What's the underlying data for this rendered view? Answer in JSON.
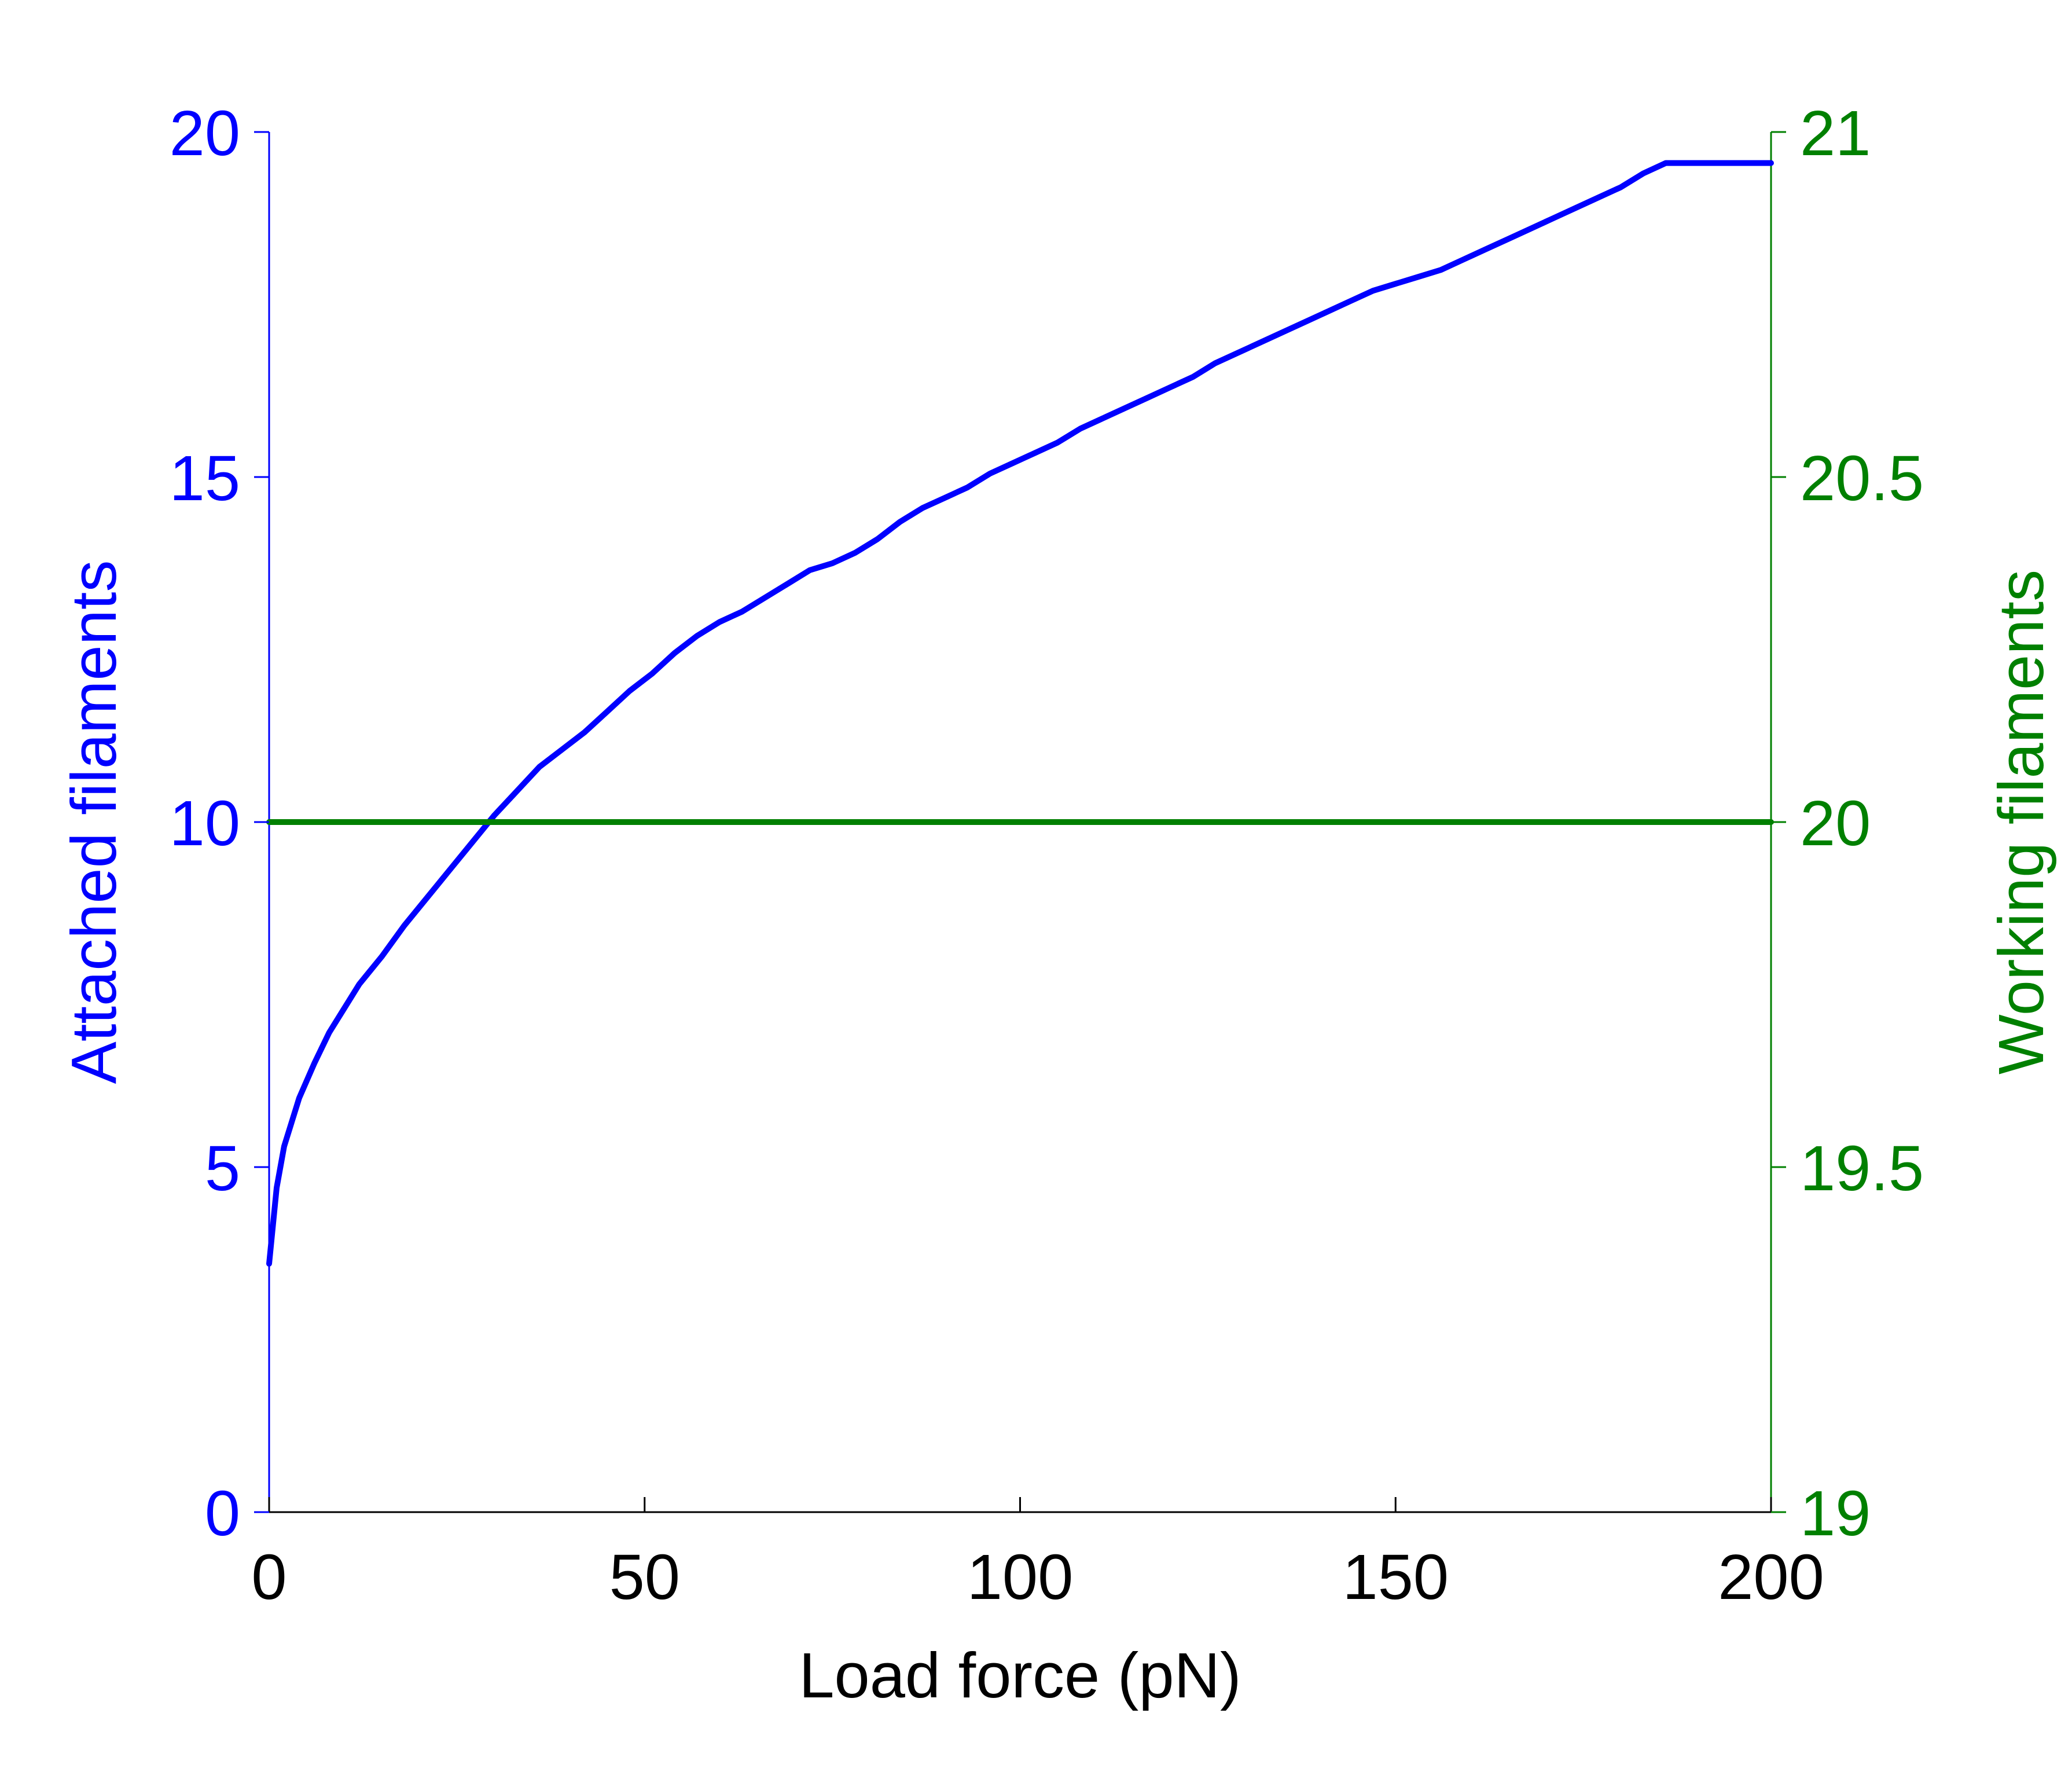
{
  "chart_data": {
    "type": "line",
    "xlabel": "Load force (pN)",
    "ylabel_left": "Attached filaments",
    "ylabel_right": "Working filaments",
    "xlim": [
      0,
      200
    ],
    "ylim_left": [
      0,
      20
    ],
    "ylim_right": [
      19,
      21
    ],
    "xticks": [
      "0",
      "50",
      "100",
      "150",
      "200"
    ],
    "yticks_left": [
      "0",
      "5",
      "10",
      "15",
      "20"
    ],
    "yticks_right": [
      "19",
      "19.5",
      "20",
      "20.5",
      "21"
    ],
    "grid": false,
    "colors": {
      "left_axis": "#0000ff",
      "right_axis": "#008000",
      "x_axis": "#000000"
    },
    "series": [
      {
        "axis": "left",
        "color": "#0000ff",
        "x": [
          0,
          1,
          2,
          4,
          6,
          8,
          10,
          12,
          15,
          18,
          21,
          24,
          27,
          30,
          33,
          36,
          39,
          42,
          45,
          48,
          51,
          54,
          57,
          60,
          63,
          66,
          69,
          72,
          75,
          78,
          81,
          84,
          87,
          90,
          93,
          96,
          99,
          102,
          105,
          108,
          111,
          114,
          117,
          120,
          123,
          126,
          129,
          132,
          135,
          138,
          141,
          144,
          147,
          150,
          153,
          156,
          159,
          162,
          165,
          168,
          171,
          174,
          177,
          180,
          183,
          186,
          189,
          200
        ],
        "y": [
          3.6,
          4.7,
          5.3,
          6.0,
          6.5,
          6.95,
          7.3,
          7.65,
          8.05,
          8.5,
          8.9,
          9.3,
          9.7,
          10.1,
          10.45,
          10.8,
          11.05,
          11.3,
          11.6,
          11.9,
          12.15,
          12.45,
          12.7,
          12.9,
          13.05,
          13.25,
          13.45,
          13.65,
          13.75,
          13.9,
          14.1,
          14.35,
          14.55,
          14.7,
          14.85,
          15.05,
          15.2,
          15.35,
          15.5,
          15.7,
          15.85,
          16.0,
          16.15,
          16.3,
          16.45,
          16.65,
          16.8,
          16.95,
          17.1,
          17.25,
          17.4,
          17.55,
          17.7,
          17.8,
          17.9,
          18.0,
          18.15,
          18.3,
          18.45,
          18.6,
          18.75,
          18.9,
          19.05,
          19.2,
          19.4,
          19.55,
          19.55,
          19.55
        ]
      },
      {
        "axis": "right",
        "color": "#008000",
        "x": [
          0,
          200
        ],
        "y": [
          20,
          20
        ]
      }
    ]
  }
}
